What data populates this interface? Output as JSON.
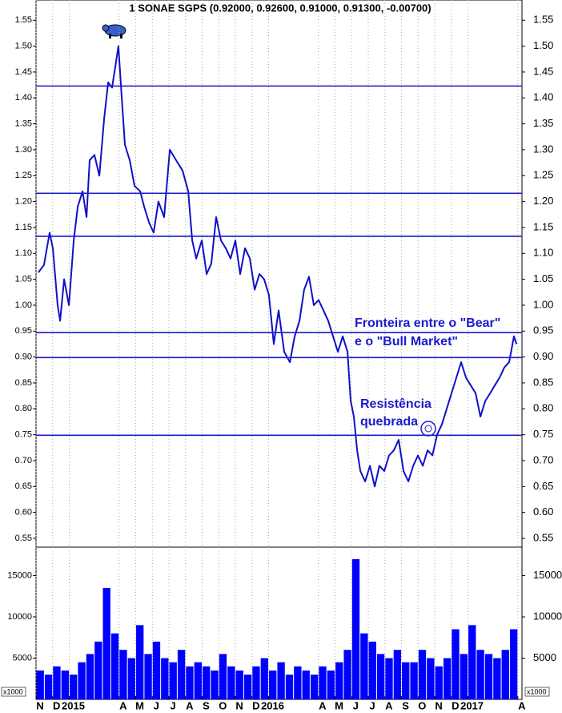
{
  "chart_data": [
    {
      "type": "line",
      "title": "1 SONAE SGPS (0.92000, 0.92600, 0.91000, 0.91300, -0.00700)",
      "color": "#1010c8",
      "x": [
        0.14,
        0.48,
        0.82,
        1.01,
        1.3,
        1.45,
        1.69,
        1.98,
        2.27,
        2.51,
        2.8,
        3.04,
        3.23,
        3.52,
        3.81,
        4.1,
        4.34,
        4.58,
        4.77,
        4.96,
        5.16,
        5.35,
        5.64,
        5.93,
        6.27,
        6.51,
        6.8,
        7.08,
        7.37,
        7.71,
        8.05,
        8.43,
        8.82,
        9.16,
        9.4,
        9.64,
        9.98,
        10.27,
        10.55,
        10.84,
        11.13,
        11.42,
        11.71,
        12.0,
        12.29,
        12.58,
        12.87,
        13.16,
        13.45,
        13.73,
        14.02,
        14.31,
        14.6,
        14.94,
        15.28,
        15.57,
        15.86,
        16.14,
        16.43,
        16.72,
        17.01,
        17.3,
        17.59,
        17.88,
        18.17,
        18.46,
        18.75,
        18.94,
        19.13,
        19.33,
        19.52,
        19.81,
        20.1,
        20.39,
        20.67,
        20.96,
        21.25,
        21.54,
        21.83,
        22.12,
        22.41,
        22.7,
        22.99,
        23.28,
        23.57,
        23.86,
        24.14,
        24.43,
        24.72,
        25.01,
        25.3,
        25.59,
        25.88,
        26.17,
        26.46,
        26.75,
        27.04,
        27.33,
        27.61,
        27.9,
        28.19,
        28.48,
        28.77,
        28.92
      ],
      "values": [
        1.063,
        1.078,
        1.14,
        1.11,
        1.0,
        0.97,
        1.05,
        1.0,
        1.125,
        1.19,
        1.22,
        1.17,
        1.28,
        1.29,
        1.25,
        1.36,
        1.43,
        1.42,
        1.46,
        1.5,
        1.4,
        1.31,
        1.28,
        1.23,
        1.22,
        1.19,
        1.16,
        1.14,
        1.2,
        1.17,
        1.3,
        1.28,
        1.26,
        1.22,
        1.125,
        1.09,
        1.125,
        1.06,
        1.08,
        1.17,
        1.125,
        1.11,
        1.09,
        1.125,
        1.06,
        1.11,
        1.09,
        1.03,
        1.06,
        1.05,
        1.02,
        0.925,
        0.99,
        0.91,
        0.89,
        0.94,
        0.97,
        1.03,
        1.055,
        1.0,
        1.01,
        0.99,
        0.97,
        0.94,
        0.91,
        0.94,
        0.91,
        0.816,
        0.785,
        0.72,
        0.68,
        0.66,
        0.69,
        0.65,
        0.69,
        0.68,
        0.71,
        0.72,
        0.74,
        0.68,
        0.66,
        0.69,
        0.71,
        0.69,
        0.72,
        0.71,
        0.75,
        0.77,
        0.8,
        0.83,
        0.86,
        0.89,
        0.86,
        0.845,
        0.83,
        0.785,
        0.815,
        0.83,
        0.845,
        0.86,
        0.88,
        0.89,
        0.94,
        0.925
      ],
      "xlim": [
        0,
        29.25
      ],
      "ylim": [
        0.533,
        1.589
      ],
      "yticks": [
        {
          "value": 0.55,
          "label": "0.55"
        },
        {
          "value": 0.6,
          "label": "0.60"
        },
        {
          "value": 0.65,
          "label": "0.65"
        },
        {
          "value": 0.7,
          "label": "0.70"
        },
        {
          "value": 0.75,
          "label": "0.75"
        },
        {
          "value": 0.8,
          "label": "0.80"
        },
        {
          "value": 0.85,
          "label": "0.85"
        },
        {
          "value": 0.9,
          "label": "0.90"
        },
        {
          "value": 0.95,
          "label": "0.95"
        },
        {
          "value": 1.0,
          "label": "1.00"
        },
        {
          "value": 1.05,
          "label": "1.05"
        },
        {
          "value": 1.1,
          "label": "1.10"
        },
        {
          "value": 1.15,
          "label": "1.15"
        },
        {
          "value": 1.2,
          "label": "1.20"
        },
        {
          "value": 1.25,
          "label": "1.25"
        },
        {
          "value": 1.3,
          "label": "1.30"
        },
        {
          "value": 1.35,
          "label": "1.35"
        },
        {
          "value": 1.4,
          "label": "1.40"
        },
        {
          "value": 1.45,
          "label": "1.45"
        },
        {
          "value": 1.5,
          "label": "1.50"
        },
        {
          "value": 1.55,
          "label": "1.55"
        }
      ],
      "hlines": [
        1.423,
        1.216,
        1.133,
        0.947,
        0.899,
        0.749
      ],
      "hline_color": "#1a1acf",
      "annotations": [
        "Fronteira entre o \"Bear\"",
        "e o \"Bull Market\"",
        "Resistência",
        "quebrada"
      ],
      "grid": true
    },
    {
      "type": "bar",
      "color": "#0000ff",
      "x": [
        0.25,
        0.75,
        1.25,
        1.75,
        2.25,
        2.75,
        3.25,
        3.75,
        4.25,
        4.75,
        5.25,
        5.75,
        6.25,
        6.75,
        7.25,
        7.75,
        8.25,
        8.75,
        9.25,
        9.75,
        10.25,
        10.75,
        11.25,
        11.75,
        12.25,
        12.75,
        13.25,
        13.75,
        14.25,
        14.75,
        15.25,
        15.75,
        16.25,
        16.75,
        17.25,
        17.75,
        18.25,
        18.75,
        19.25,
        19.75,
        20.25,
        20.75,
        21.25,
        21.75,
        22.25,
        22.75,
        23.25,
        23.75,
        24.25,
        24.75,
        25.25,
        25.75,
        26.25,
        26.75,
        27.25,
        27.75,
        28.25,
        28.75
      ],
      "values": [
        3500,
        3000,
        4000,
        3500,
        3000,
        4500,
        5500,
        7000,
        13500,
        8000,
        6000,
        5000,
        9000,
        5500,
        7000,
        5000,
        4500,
        6000,
        4000,
        4500,
        4000,
        3500,
        5500,
        4000,
        3500,
        3000,
        4000,
        5000,
        3500,
        4500,
        3000,
        4000,
        3500,
        3000,
        4000,
        3500,
        4500,
        6000,
        17000,
        8000,
        7000,
        5500,
        5000,
        6000,
        4500,
        4500,
        6000,
        5000,
        4000,
        5000,
        8500,
        5500,
        9000,
        6000,
        5500,
        5000,
        6000,
        8500
      ],
      "xlim": [
        0,
        29.25
      ],
      "ylim": [
        0,
        18450
      ],
      "yticks": [
        5000,
        10000,
        15000
      ],
      "y_unit_label": "x1000",
      "xticks": [
        {
          "value": 0,
          "label": "N"
        },
        {
          "value": 1,
          "label": "D"
        },
        {
          "value": 2,
          "label": "2015"
        },
        {
          "value": 5,
          "label": "A"
        },
        {
          "value": 6,
          "label": "M"
        },
        {
          "value": 7,
          "label": "J"
        },
        {
          "value": 8,
          "label": "J"
        },
        {
          "value": 9,
          "label": "A"
        },
        {
          "value": 10,
          "label": "S"
        },
        {
          "value": 11,
          "label": "O"
        },
        {
          "value": 12,
          "label": "N"
        },
        {
          "value": 13,
          "label": "D"
        },
        {
          "value": 14,
          "label": "2016"
        },
        {
          "value": 17,
          "label": "A"
        },
        {
          "value": 18,
          "label": "M"
        },
        {
          "value": 19,
          "label": "J"
        },
        {
          "value": 20,
          "label": "J"
        },
        {
          "value": 21,
          "label": "A"
        },
        {
          "value": 22,
          "label": "S"
        },
        {
          "value": 23,
          "label": "O"
        },
        {
          "value": 24,
          "label": "N"
        },
        {
          "value": 25,
          "label": "D"
        },
        {
          "value": 26,
          "label": "2017"
        },
        {
          "value": 29,
          "label": "A"
        }
      ],
      "grid": true
    }
  ]
}
